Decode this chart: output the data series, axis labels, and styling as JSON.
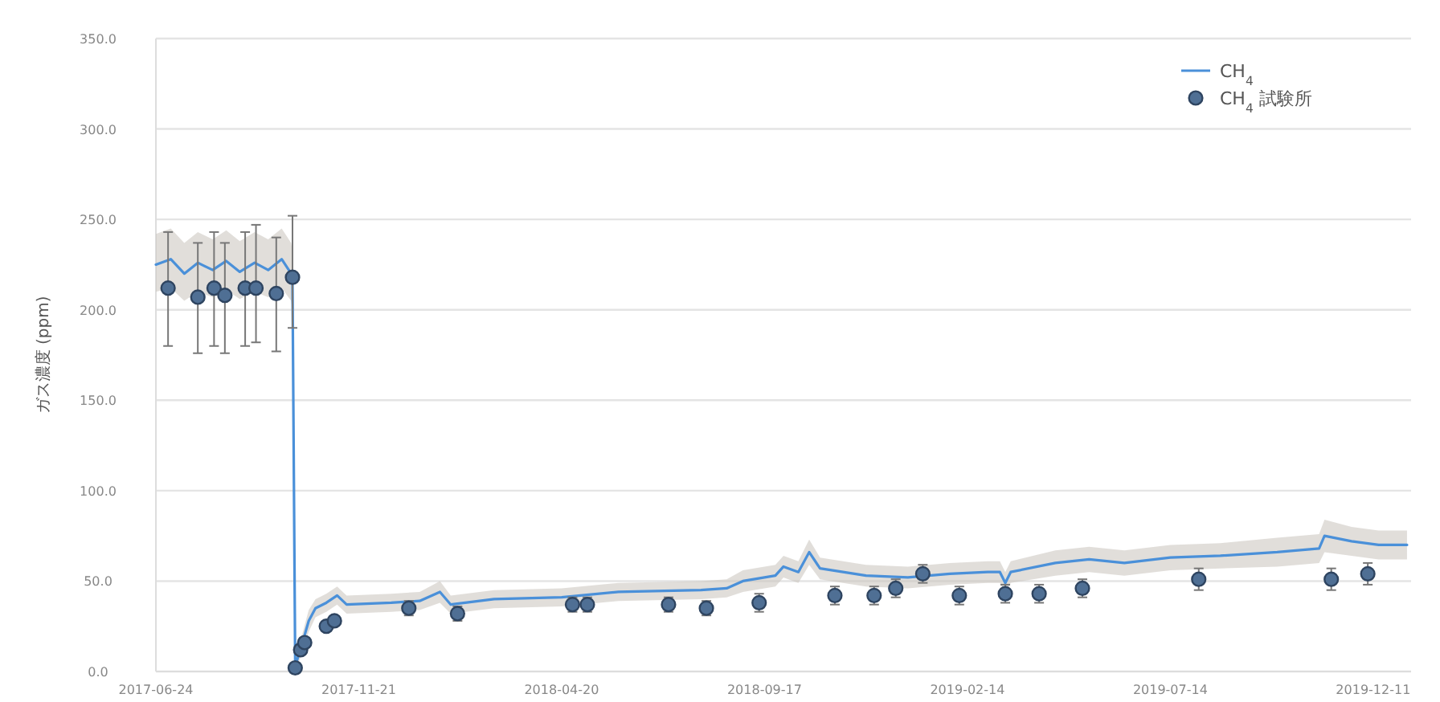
{
  "chart_data": {
    "type": "line",
    "ylabel": "ガス濃度 (ppm)",
    "ylim": [
      0,
      350
    ],
    "yticks": [
      {
        "value": 0,
        "label": "0.0"
      },
      {
        "value": 50,
        "label": "50.0"
      },
      {
        "value": 100,
        "label": "100.0"
      },
      {
        "value": 150,
        "label": "150.0"
      },
      {
        "value": 200,
        "label": "200.0"
      },
      {
        "value": 250,
        "label": "250.0"
      },
      {
        "value": 300,
        "label": "300.0"
      },
      {
        "value": 350,
        "label": "350.0"
      }
    ],
    "xlim": [
      "2017-06-24",
      "2020-01-08"
    ],
    "xticks": [
      "2017-06-24",
      "2017-11-21",
      "2018-04-20",
      "2018-09-17",
      "2019-02-14",
      "2019-07-14",
      "2019-12-11"
    ],
    "grid": "y",
    "legend": "top right",
    "series": [
      {
        "name": "CH$_{4}$",
        "color": "#4a90d9",
        "line_style": "solid",
        "x": [
          "2017-06-24",
          "2017-07-05",
          "2017-07-15",
          "2017-07-25",
          "2017-08-05",
          "2017-08-15",
          "2017-08-25",
          "2017-09-05",
          "2017-09-15",
          "2017-09-25",
          "2017-10-02",
          "2017-10-03",
          "2017-10-05",
          "2017-10-10",
          "2017-10-15",
          "2017-10-20",
          "2017-10-28",
          "2017-11-05",
          "2017-11-12",
          "2017-12-15",
          "2018-01-05",
          "2018-01-20",
          "2018-01-28",
          "2018-03-01",
          "2018-04-20",
          "2018-06-01",
          "2018-08-01",
          "2018-08-20",
          "2018-09-01",
          "2018-09-25",
          "2018-10-01",
          "2018-10-12",
          "2018-10-20",
          "2018-10-28",
          "2018-12-01",
          "2019-01-01",
          "2019-02-01",
          "2019-03-01",
          "2019-03-10",
          "2019-03-14",
          "2019-03-18",
          "2019-04-20",
          "2019-05-15",
          "2019-06-10",
          "2019-07-14",
          "2019-08-20",
          "2019-10-01",
          "2019-11-01",
          "2019-11-05",
          "2019-11-25",
          "2019-12-15",
          "2020-01-05"
        ],
        "values": [
          225,
          228,
          220,
          226,
          222,
          227,
          221,
          226,
          222,
          228,
          220,
          215,
          3,
          15,
          28,
          35,
          38,
          42,
          37,
          38,
          39,
          44,
          37,
          40,
          41,
          44,
          45,
          46,
          50,
          53,
          58,
          55,
          66,
          57,
          53,
          52,
          54,
          55,
          55,
          49,
          55,
          60,
          62,
          60,
          63,
          64,
          66,
          68,
          75,
          72,
          70,
          70
        ],
        "lower": [
          210,
          212,
          205,
          210,
          207,
          211,
          206,
          210,
          207,
          212,
          205,
          200,
          0,
          10,
          22,
          30,
          33,
          37,
          32,
          33,
          34,
          38,
          32,
          35,
          36,
          39,
          40,
          41,
          44,
          47,
          52,
          49,
          59,
          51,
          47,
          46,
          48,
          49,
          49,
          43,
          49,
          53,
          55,
          53,
          56,
          57,
          58,
          60,
          66,
          64,
          62,
          62
        ],
        "upper": [
          242,
          245,
          237,
          243,
          239,
          244,
          238,
          243,
          239,
          245,
          237,
          232,
          6,
          20,
          34,
          40,
          43,
          47,
          42,
          43,
          44,
          50,
          42,
          45,
          46,
          49,
          50,
          51,
          56,
          59,
          64,
          61,
          73,
          63,
          59,
          58,
          60,
          61,
          61,
          55,
          61,
          67,
          69,
          67,
          70,
          71,
          74,
          76,
          84,
          80,
          78,
          78
        ]
      },
      {
        "name": "CH$_{4}$ 試験所",
        "type": "scatter",
        "color": "#4f6f94",
        "marker": "circle",
        "x": [
          "2017-07-03",
          "2017-07-25",
          "2017-08-06",
          "2017-08-14",
          "2017-08-29",
          "2017-09-06",
          "2017-09-21",
          "2017-10-03",
          "2017-10-05",
          "2017-10-09",
          "2017-10-12",
          "2017-10-28",
          "2017-11-03",
          "2017-12-28",
          "2018-02-02",
          "2018-04-28",
          "2018-05-09",
          "2018-07-08",
          "2018-08-05",
          "2018-09-13",
          "2018-11-08",
          "2018-12-07",
          "2018-12-23",
          "2019-01-12",
          "2019-02-08",
          "2019-03-14",
          "2019-04-08",
          "2019-05-10",
          "2019-08-04",
          "2019-11-10",
          "2019-12-07"
        ],
        "values": [
          212,
          207,
          212,
          208,
          212,
          212,
          209,
          218,
          2,
          12,
          16,
          25,
          28,
          35,
          32,
          37,
          37,
          37,
          35,
          38,
          42,
          42,
          46,
          54,
          42,
          43,
          43,
          46,
          51,
          51,
          54
        ],
        "errors": [
          [
            180,
            243
          ],
          [
            176,
            237
          ],
          [
            180,
            243
          ],
          [
            176,
            237
          ],
          [
            180,
            243
          ],
          [
            182,
            247
          ],
          [
            177,
            240
          ],
          [
            190,
            252
          ],
          null,
          null,
          null,
          null,
          null,
          [
            31,
            39
          ],
          [
            28,
            36
          ],
          [
            33,
            41
          ],
          [
            33,
            41
          ],
          [
            33,
            41
          ],
          [
            31,
            39
          ],
          [
            33,
            43
          ],
          [
            37,
            47
          ],
          [
            37,
            47
          ],
          [
            41,
            51
          ],
          [
            49,
            59
          ],
          [
            37,
            47
          ],
          [
            38,
            48
          ],
          [
            38,
            48
          ],
          [
            41,
            51
          ],
          [
            45,
            57
          ],
          [
            45,
            57
          ],
          [
            48,
            60
          ]
        ]
      }
    ]
  }
}
